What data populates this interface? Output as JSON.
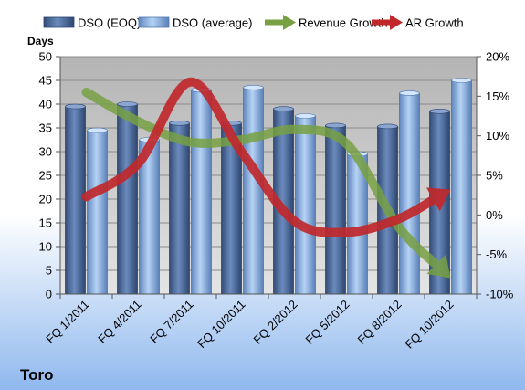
{
  "chart_data": {
    "type": "bar",
    "company": "Toro",
    "left_axis_title": "Days",
    "left_ylim": [
      0,
      50
    ],
    "left_ticks": [
      0,
      5,
      10,
      15,
      20,
      25,
      30,
      35,
      40,
      45,
      50
    ],
    "right_ylim": [
      -10,
      20
    ],
    "right_ticks": [
      -10,
      -5,
      0,
      5,
      10,
      15,
      20
    ],
    "right_tick_labels": [
      "-10%",
      "-5%",
      "0%",
      "5%",
      "10%",
      "15%",
      "20%"
    ],
    "categories": [
      "FQ 1/2011",
      "FQ 4/2011",
      "FQ 7/2011",
      "FQ 10/2011",
      "FQ 2/2012",
      "FQ 5/2012",
      "FQ 8/2012",
      "FQ 10/2012"
    ],
    "series": [
      {
        "name": "DSO (EOQ)",
        "axis": "left",
        "kind": "bar",
        "color": "#4f6fa0",
        "values": [
          39.5,
          40,
          36,
          36,
          39,
          35.5,
          35.3,
          38.5
        ]
      },
      {
        "name": "DSO (average)",
        "axis": "left",
        "kind": "bar",
        "color": "#8fb5e3",
        "values": [
          34.5,
          32.5,
          43,
          43.5,
          37.5,
          29.5,
          42.3,
          45
        ]
      },
      {
        "name": "Revenue Growth",
        "axis": "right",
        "kind": "arrow-line",
        "color": "#77a043",
        "values": [
          15.5,
          11.8,
          9.2,
          9.5,
          10.8,
          9.0,
          -1.5,
          -8.0
        ]
      },
      {
        "name": "AR Growth",
        "axis": "right",
        "kind": "arrow-line",
        "color": "#c0282c",
        "values": [
          2.3,
          6.5,
          16.8,
          7.8,
          -0.8,
          -2.2,
          -0.5,
          3.2
        ]
      }
    ],
    "legend_position": "top",
    "grid": "horizontal"
  }
}
